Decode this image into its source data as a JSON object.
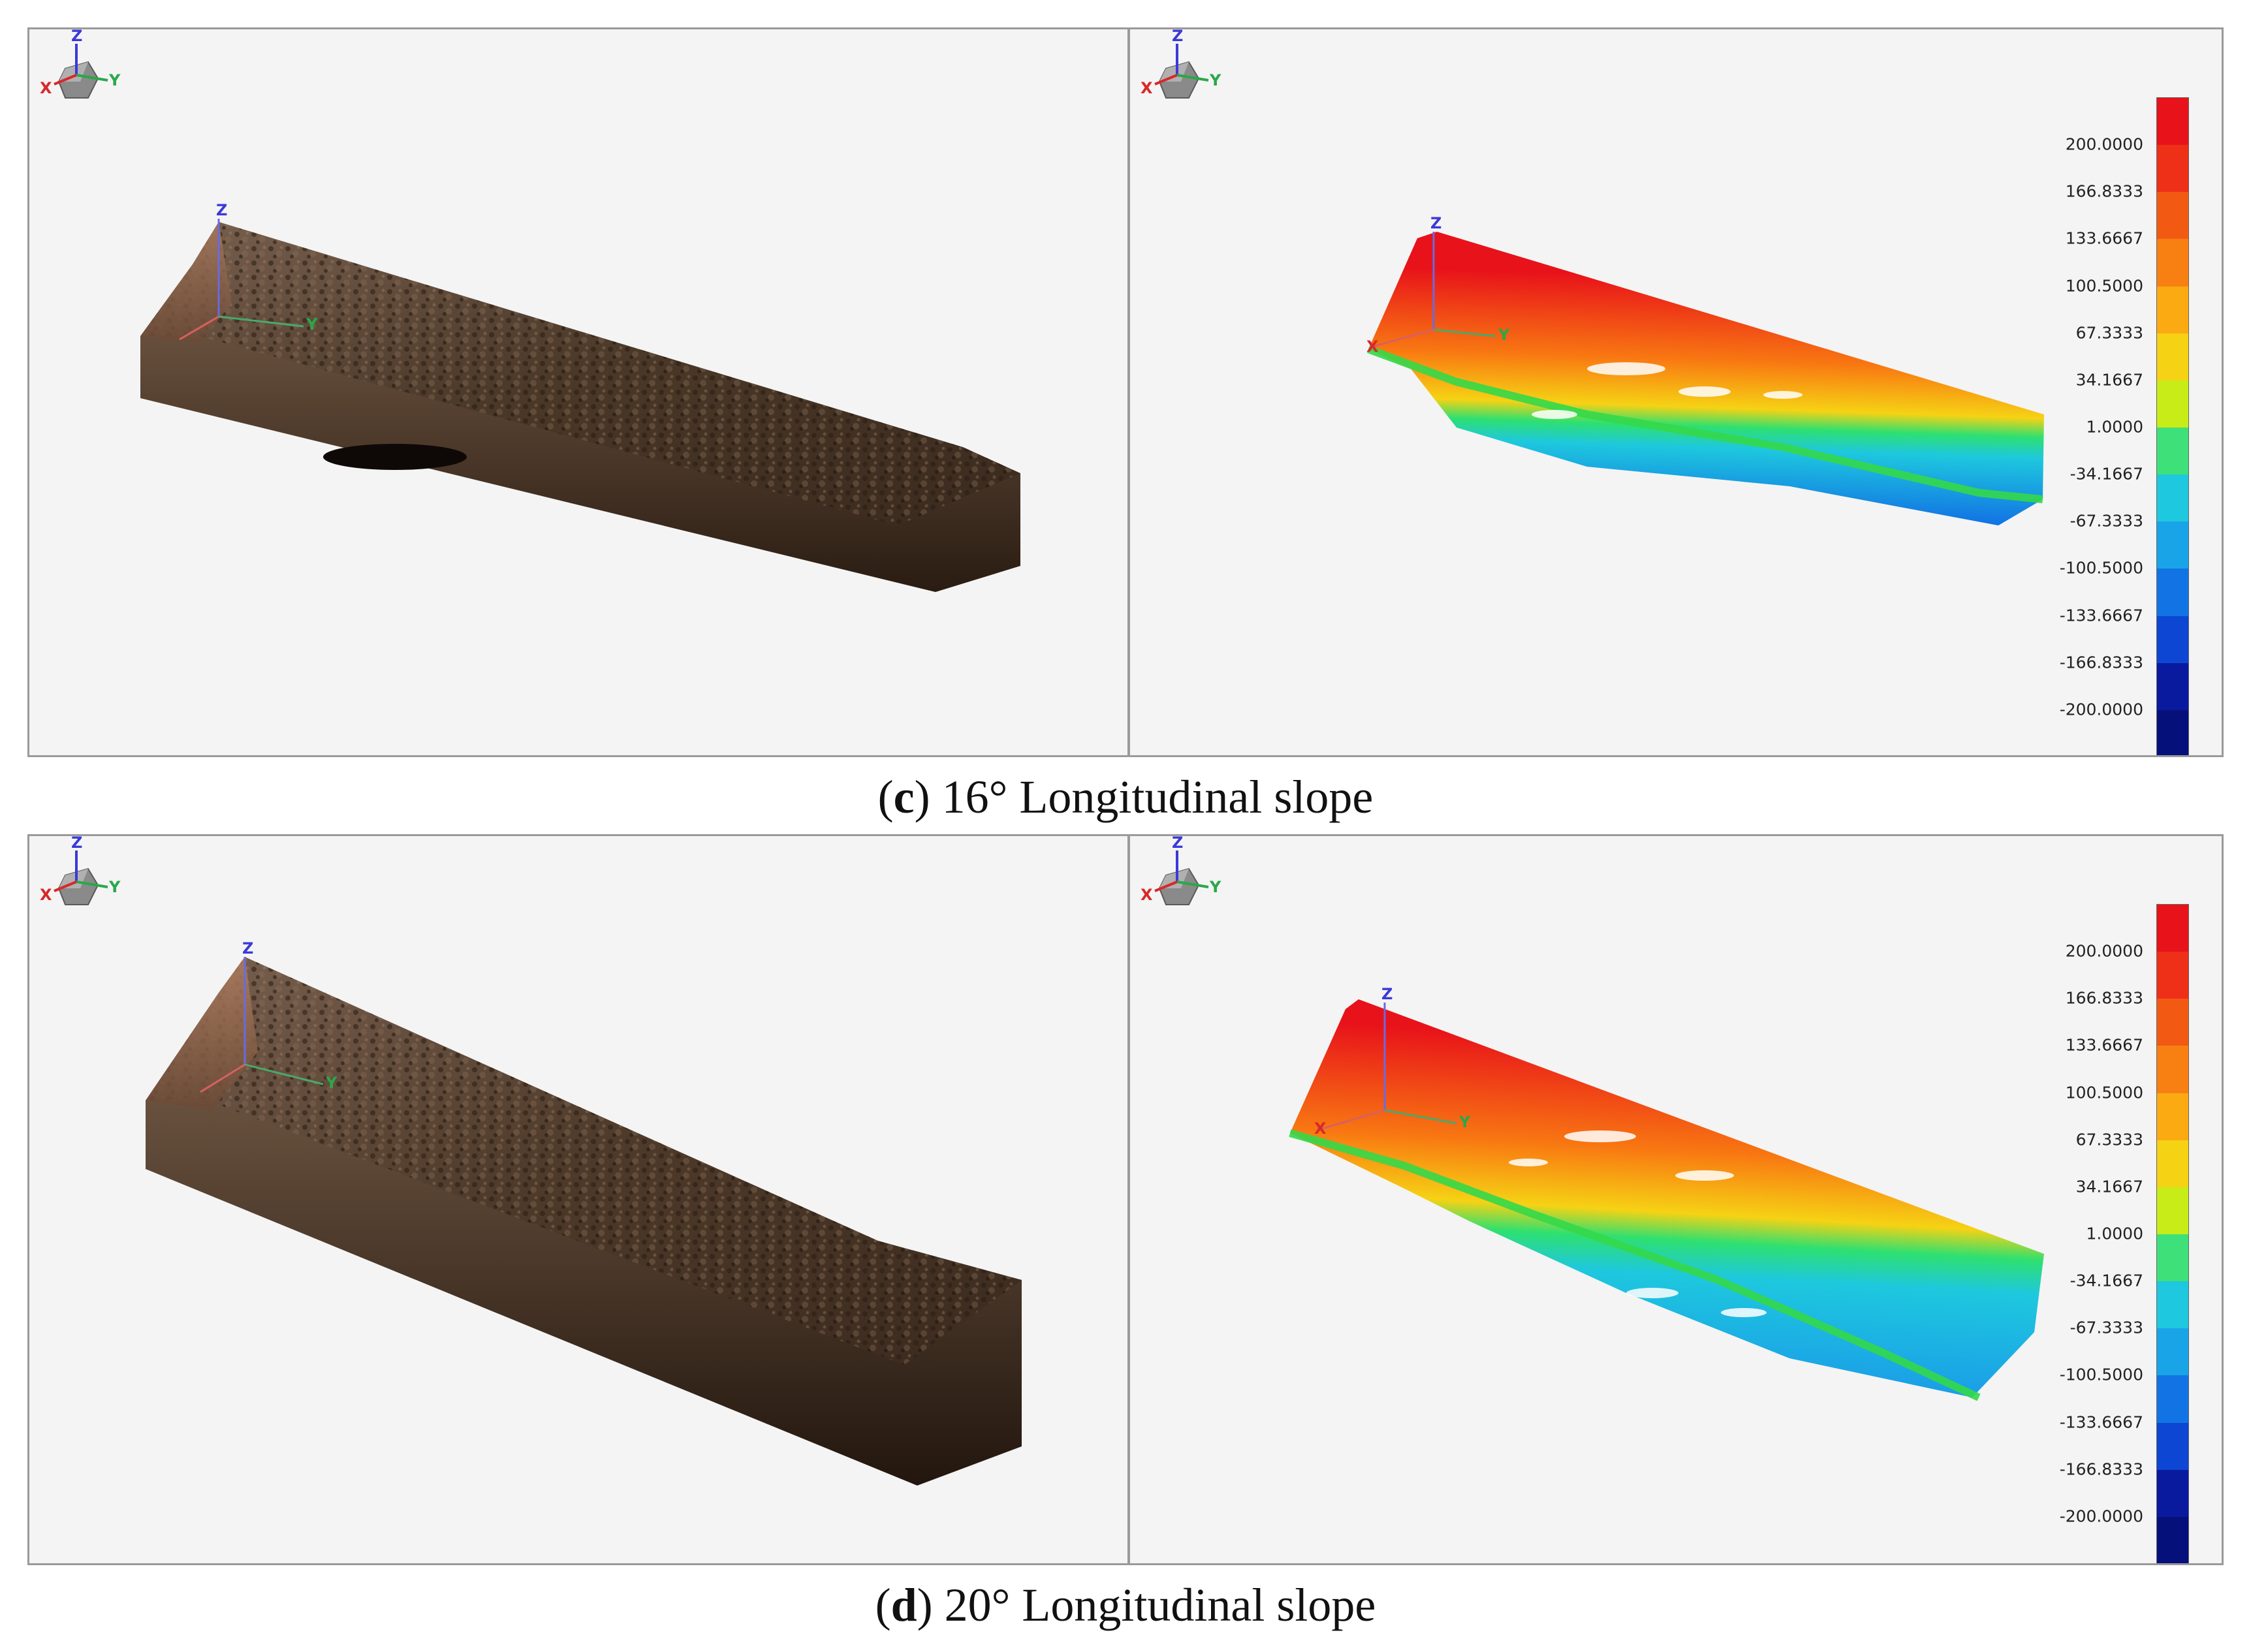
{
  "figure": {
    "rows": [
      {
        "label_letter": "c",
        "caption_text": " 16° Longitudinal slope",
        "left_panel": {
          "axes": [
            "X",
            "Y",
            "Z"
          ]
        },
        "right_panel": {
          "axes": [
            "X",
            "Y",
            "Z"
          ],
          "color_legend": {
            "ticks": [
              "200.0000",
              "166.8333",
              "133.6667",
              "100.5000",
              "67.3333",
              "34.1667",
              "1.0000",
              "-34.1667",
              "-67.3333",
              "-100.5000",
              "-133.6667",
              "-166.8333",
              "-200.0000"
            ],
            "colors": [
              "#e8121a",
              "#ee3018",
              "#f25a14",
              "#f88012",
              "#fcaa12",
              "#f6d214",
              "#c8ec18",
              "#3ee07a",
              "#1ec8de",
              "#1aa4e8",
              "#1274e4",
              "#0d46d2",
              "#0a1a9e",
              "#06107a"
            ]
          }
        }
      },
      {
        "label_letter": "d",
        "caption_text": " 20° Longitudinal slope",
        "left_panel": {
          "axes": [
            "X",
            "Y",
            "Z"
          ]
        },
        "right_panel": {
          "axes": [
            "X",
            "Y",
            "Z"
          ],
          "color_legend": {
            "ticks": [
              "200.0000",
              "166.8333",
              "133.6667",
              "100.5000",
              "67.3333",
              "34.1667",
              "1.0000",
              "-34.1667",
              "-67.3333",
              "-100.5000",
              "-133.6667",
              "-166.8333",
              "-200.0000"
            ],
            "colors": [
              "#e8121a",
              "#ee3018",
              "#f25a14",
              "#f88012",
              "#fcaa12",
              "#f6d214",
              "#c8ec18",
              "#3ee07a",
              "#1ec8de",
              "#1aa4e8",
              "#1274e4",
              "#0d46d2",
              "#0a1a9e",
              "#06107a"
            ]
          }
        }
      }
    ],
    "colors": {
      "panel_background": "#f4f4f4",
      "panel_border": "#9a9a9a",
      "rock_dark": "#2e2118",
      "rock_mid": "#5a4535",
      "rock_light": "#8a7260",
      "axis_x": "#d8282a",
      "axis_y": "#2aa84a",
      "axis_z": "#3a3ad8"
    }
  }
}
